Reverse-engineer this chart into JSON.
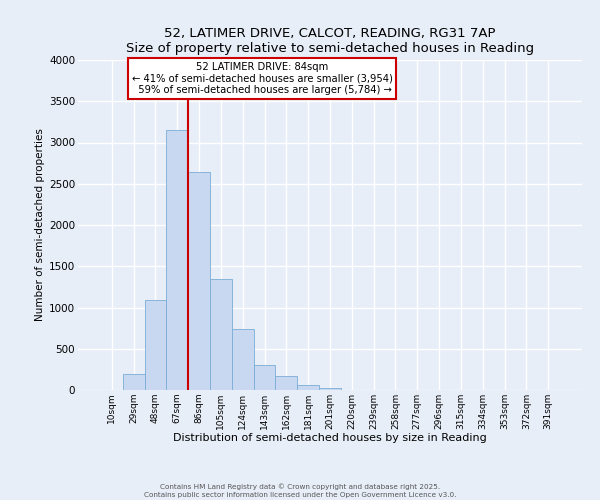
{
  "title": "52, LATIMER DRIVE, CALCOT, READING, RG31 7AP",
  "subtitle": "Size of property relative to semi-detached houses in Reading",
  "xlabel": "Distribution of semi-detached houses by size in Reading",
  "ylabel": "Number of semi-detached properties",
  "bar_labels": [
    "10sqm",
    "29sqm",
    "48sqm",
    "67sqm",
    "86sqm",
    "105sqm",
    "124sqm",
    "143sqm",
    "162sqm",
    "181sqm",
    "201sqm",
    "220sqm",
    "239sqm",
    "258sqm",
    "277sqm",
    "296sqm",
    "315sqm",
    "334sqm",
    "353sqm",
    "372sqm",
    "391sqm"
  ],
  "bar_values": [
    0,
    195,
    1090,
    3150,
    2640,
    1350,
    745,
    305,
    175,
    65,
    30,
    5,
    2,
    0,
    0,
    0,
    0,
    0,
    0,
    0,
    0
  ],
  "bar_color": "#c8d8f0",
  "bar_edge_color": "#7aadd6",
  "property_line_index": 4,
  "property_size": "84sqm",
  "pct_smaller": 41,
  "pct_larger": 59,
  "count_smaller": 3954,
  "count_larger": 5784,
  "annotation_box_color": "#ffffff",
  "annotation_box_edge_color": "#cc0000",
  "property_line_color": "#cc0000",
  "ylim": [
    0,
    4000
  ],
  "yticks": [
    0,
    500,
    1000,
    1500,
    2000,
    2500,
    3000,
    3500,
    4000
  ],
  "footer_line1": "Contains HM Land Registry data © Crown copyright and database right 2025.",
  "footer_line2": "Contains public sector information licensed under the Open Government Licence v3.0.",
  "bg_color": "#e8eef8",
  "plot_bg_color": "#e8eef8"
}
